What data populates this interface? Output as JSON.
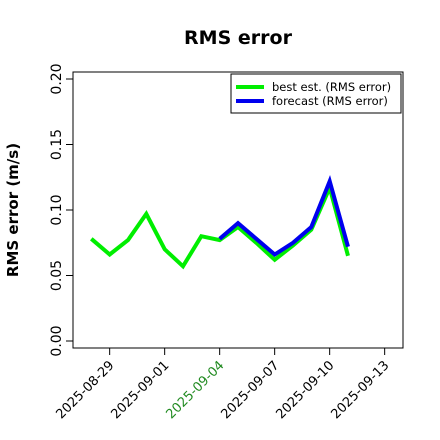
{
  "chart_data": {
    "type": "line",
    "title": "RMS error",
    "xlabel": "",
    "ylabel": "RMS error (m/s)",
    "x": [
      "2025-08-28",
      "2025-08-29",
      "2025-08-30",
      "2025-08-31",
      "2025-09-01",
      "2025-09-02",
      "2025-09-03",
      "2025-09-04",
      "2025-09-05",
      "2025-09-06",
      "2025-09-07",
      "2025-09-08",
      "2025-09-09",
      "2025-09-10",
      "2025-09-11"
    ],
    "xticks": [
      "2025-08-29",
      "2025-09-01",
      "2025-09-04",
      "2025-09-07",
      "2025-09-10",
      "2025-09-13"
    ],
    "xtick_colors": [
      "#000000",
      "#000000",
      "#228B22",
      "#000000",
      "#000000",
      "#000000"
    ],
    "xlim": [
      "2025-08-27",
      "2025-09-14"
    ],
    "yticks": [
      "0.00",
      "0.05",
      "0.10",
      "0.15",
      "0.20"
    ],
    "ylim": [
      0,
      0.21
    ],
    "grid": false,
    "legend_position": "top-right",
    "series": [
      {
        "name": "best est. (RMS error)",
        "color": "#00ee00",
        "values": [
          0.078,
          0.066,
          0.077,
          0.097,
          0.07,
          0.057,
          0.08,
          0.077,
          0.087,
          0.075,
          0.062,
          0.073,
          0.085,
          0.117,
          0.065
        ]
      },
      {
        "name": "forecast (RMS error)",
        "color": "#0000ee",
        "start_index": 7,
        "values": [
          null,
          null,
          null,
          null,
          null,
          null,
          null,
          0.078,
          0.09,
          0.078,
          0.066,
          0.075,
          0.087,
          0.122,
          0.072
        ]
      }
    ]
  }
}
